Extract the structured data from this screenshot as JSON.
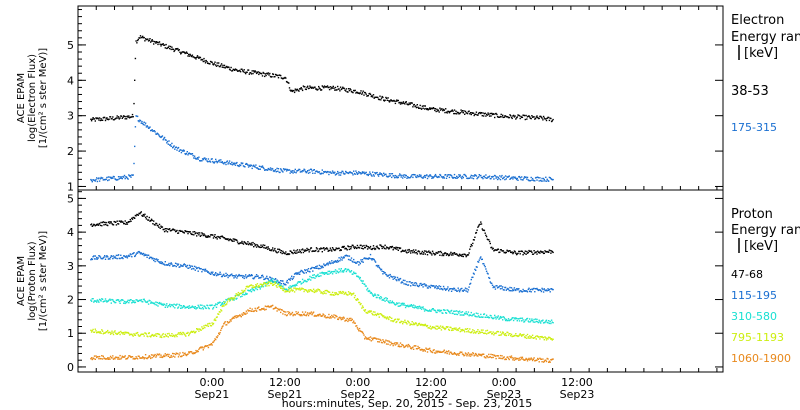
{
  "colors": {
    "axis": "#000000",
    "black_series": "#000000",
    "blue_series": "#1a6fd1",
    "cyan_series": "#19e0d2",
    "yellow_series": "#ccee10",
    "orange_series": "#e8891c"
  },
  "x_axis": {
    "title": "hours:minutes, Sep. 20, 2015 - Sep. 23, 2015",
    "range_hours": [
      -22,
      84
    ],
    "ticks": [
      {
        "hour": 0,
        "time": "0:00",
        "date": "Sep21"
      },
      {
        "hour": 12,
        "time": "12:00",
        "date": "Sep21"
      },
      {
        "hour": 24,
        "time": "0:00",
        "date": "Sep22"
      },
      {
        "hour": 36,
        "time": "12:00",
        "date": "Sep22"
      },
      {
        "hour": 48,
        "time": "0:00",
        "date": "Sep23"
      },
      {
        "hour": 60,
        "time": "12:00",
        "date": "Sep23"
      }
    ]
  },
  "chart_data": [
    {
      "type": "scatter",
      "ylabel_lines": [
        "ACE EPAM",
        "log(Electron Flux)",
        "[1/(cm² s ster MeV)]"
      ],
      "ylim": [
        0.9,
        6.1
      ],
      "yticks": [
        1,
        2,
        3,
        4,
        5
      ],
      "legend_title_lines": [
        "Electron",
        "Energy ran",
        "[keV]"
      ],
      "series": [
        {
          "name": "38-53",
          "color_key": "black_series",
          "points": [
            [
              -20,
              2.9
            ],
            [
              -16,
              2.95
            ],
            [
              -13,
              3.0
            ],
            [
              -12.6,
              5.1
            ],
            [
              -12,
              5.25
            ],
            [
              -8,
              5.0
            ],
            [
              -4,
              4.75
            ],
            [
              0,
              4.5
            ],
            [
              4,
              4.3
            ],
            [
              8,
              4.2
            ],
            [
              12,
              4.1
            ],
            [
              13,
              3.7
            ],
            [
              15,
              3.8
            ],
            [
              20,
              3.8
            ],
            [
              24,
              3.7
            ],
            [
              28,
              3.5
            ],
            [
              32,
              3.35
            ],
            [
              36,
              3.2
            ],
            [
              42,
              3.1
            ],
            [
              48,
              3.0
            ],
            [
              54,
              2.95
            ],
            [
              56,
              2.9
            ]
          ]
        },
        {
          "name": "175-315",
          "color_key": "blue_series",
          "points": [
            [
              -20,
              1.2
            ],
            [
              -16,
              1.25
            ],
            [
              -13,
              1.3
            ],
            [
              -12.6,
              3.0
            ],
            [
              -12,
              2.9
            ],
            [
              -9,
              2.5
            ],
            [
              -6,
              2.1
            ],
            [
              -2,
              1.8
            ],
            [
              2,
              1.7
            ],
            [
              6,
              1.6
            ],
            [
              10,
              1.5
            ],
            [
              12,
              1.45
            ],
            [
              16,
              1.45
            ],
            [
              20,
              1.4
            ],
            [
              24,
              1.4
            ],
            [
              28,
              1.35
            ],
            [
              32,
              1.3
            ],
            [
              36,
              1.3
            ],
            [
              44,
              1.3
            ],
            [
              50,
              1.25
            ],
            [
              56,
              1.22
            ]
          ]
        }
      ]
    },
    {
      "type": "scatter",
      "ylabel_lines": [
        "ACE EPAM",
        "log(Proton Flux)",
        "[1/(cm² s ster MeV)]"
      ],
      "ylim": [
        -0.15,
        5.25
      ],
      "yticks": [
        0,
        1,
        2,
        3,
        4,
        5
      ],
      "legend_title_lines": [
        "Proton",
        "Energy ran",
        "[keV]"
      ],
      "series": [
        {
          "name": "47-68",
          "color_key": "black_series",
          "points": [
            [
              -20,
              4.25
            ],
            [
              -14,
              4.3
            ],
            [
              -12,
              4.6
            ],
            [
              -8,
              4.1
            ],
            [
              -4,
              4.0
            ],
            [
              0,
              3.9
            ],
            [
              4,
              3.75
            ],
            [
              8,
              3.6
            ],
            [
              12,
              3.4
            ],
            [
              16,
              3.5
            ],
            [
              20,
              3.5
            ],
            [
              24,
              3.6
            ],
            [
              26,
              3.55
            ],
            [
              28,
              3.6
            ],
            [
              32,
              3.45
            ],
            [
              36,
              3.4
            ],
            [
              42,
              3.35
            ],
            [
              44,
              4.3
            ],
            [
              46,
              3.5
            ],
            [
              50,
              3.4
            ],
            [
              56,
              3.45
            ]
          ]
        },
        {
          "name": "115-195",
          "color_key": "blue_series",
          "points": [
            [
              -20,
              3.25
            ],
            [
              -14,
              3.3
            ],
            [
              -12,
              3.4
            ],
            [
              -8,
              3.1
            ],
            [
              -4,
              3.0
            ],
            [
              0,
              2.8
            ],
            [
              4,
              2.7
            ],
            [
              8,
              2.7
            ],
            [
              12,
              2.5
            ],
            [
              14,
              2.8
            ],
            [
              18,
              3.0
            ],
            [
              22,
              3.3
            ],
            [
              24,
              3.1
            ],
            [
              26,
              3.3
            ],
            [
              28,
              2.8
            ],
            [
              32,
              2.5
            ],
            [
              36,
              2.4
            ],
            [
              40,
              2.3
            ],
            [
              42,
              2.3
            ],
            [
              44,
              3.3
            ],
            [
              46,
              2.4
            ],
            [
              50,
              2.3
            ],
            [
              56,
              2.3
            ]
          ]
        },
        {
          "name": "310-580",
          "color_key": "cyan_series",
          "points": [
            [
              -20,
              2.0
            ],
            [
              -14,
              1.95
            ],
            [
              -12,
              2.0
            ],
            [
              -8,
              1.85
            ],
            [
              -4,
              1.8
            ],
            [
              0,
              1.8
            ],
            [
              4,
              2.1
            ],
            [
              8,
              2.4
            ],
            [
              10,
              2.6
            ],
            [
              12,
              2.3
            ],
            [
              14,
              2.5
            ],
            [
              18,
              2.8
            ],
            [
              22,
              2.9
            ],
            [
              24,
              2.7
            ],
            [
              26,
              2.2
            ],
            [
              30,
              1.9
            ],
            [
              36,
              1.7
            ],
            [
              42,
              1.6
            ],
            [
              48,
              1.45
            ],
            [
              56,
              1.35
            ]
          ]
        },
        {
          "name": "795-1193",
          "color_key": "yellow_series",
          "points": [
            [
              -20,
              1.1
            ],
            [
              -14,
              1.0
            ],
            [
              -8,
              0.95
            ],
            [
              -4,
              1.0
            ],
            [
              0,
              1.3
            ],
            [
              2,
              1.9
            ],
            [
              6,
              2.4
            ],
            [
              10,
              2.5
            ],
            [
              12,
              2.3
            ],
            [
              16,
              2.3
            ],
            [
              20,
              2.2
            ],
            [
              23,
              2.2
            ],
            [
              25,
              1.7
            ],
            [
              30,
              1.4
            ],
            [
              36,
              1.2
            ],
            [
              42,
              1.1
            ],
            [
              48,
              1.0
            ],
            [
              56,
              0.85
            ]
          ]
        },
        {
          "name": "1060-1900",
          "color_key": "orange_series",
          "points": [
            [
              -20,
              0.3
            ],
            [
              -14,
              0.3
            ],
            [
              -8,
              0.35
            ],
            [
              -4,
              0.4
            ],
            [
              0,
              0.7
            ],
            [
              2,
              1.3
            ],
            [
              6,
              1.7
            ],
            [
              10,
              1.8
            ],
            [
              12,
              1.6
            ],
            [
              16,
              1.6
            ],
            [
              20,
              1.5
            ],
            [
              23,
              1.4
            ],
            [
              25,
              0.9
            ],
            [
              30,
              0.7
            ],
            [
              36,
              0.5
            ],
            [
              42,
              0.4
            ],
            [
              48,
              0.3
            ],
            [
              56,
              0.2
            ]
          ]
        }
      ]
    }
  ]
}
